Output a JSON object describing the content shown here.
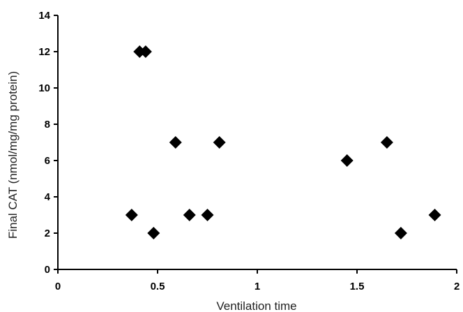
{
  "chart_data": {
    "type": "scatter",
    "title": "",
    "xlabel": "Ventilation time",
    "ylabel": "Final CAT (nmol/mg/mg protein)",
    "xlim": [
      0,
      2
    ],
    "ylim": [
      0,
      14
    ],
    "x_ticks": [
      0,
      0.5,
      1,
      1.5,
      2
    ],
    "x_tick_labels": [
      "0",
      "0.5",
      "1",
      "1.5",
      "2"
    ],
    "y_ticks": [
      0,
      2,
      4,
      6,
      8,
      10,
      12,
      14
    ],
    "y_tick_labels": [
      "0",
      "2",
      "4",
      "6",
      "8",
      "10",
      "12",
      "14"
    ],
    "grid": false,
    "legend": "none",
    "marker": "diamond",
    "marker_color": "#000000",
    "series": [
      {
        "x": [
          0.37,
          0.41,
          0.44,
          0.48,
          0.59,
          0.66,
          0.75,
          0.81,
          1.45,
          1.65,
          1.72,
          1.89
        ],
        "y": [
          3,
          12,
          12,
          2,
          7,
          3,
          3,
          7,
          6,
          7,
          2,
          3
        ]
      }
    ]
  }
}
